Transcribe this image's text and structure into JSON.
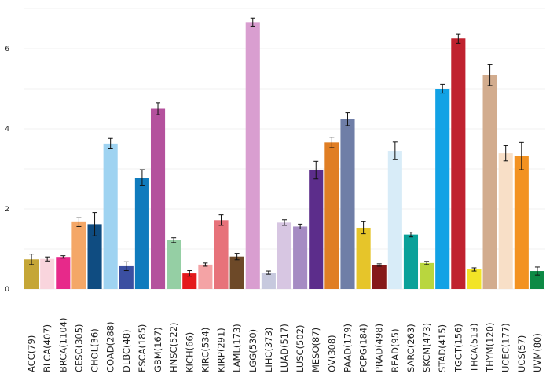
{
  "chart_data": {
    "type": "bar",
    "title": "",
    "xlabel": "",
    "ylabel": "",
    "ylim": [
      0,
      7
    ],
    "y_ticks": [
      0,
      2,
      4,
      6
    ],
    "grid": true,
    "categories": [
      "ACC(79)",
      "BLCA(407)",
      "BRCA(1104)",
      "CESC(305)",
      "CHOL(36)",
      "COAD(288)",
      "DLBC(48)",
      "ESCA(185)",
      "GBM(167)",
      "HNSC(522)",
      "KICH(66)",
      "KIRC(534)",
      "KIRP(291)",
      "LAML(173)",
      "LGG(530)",
      "LIHC(373)",
      "LUAD(517)",
      "LUSC(502)",
      "MESO(87)",
      "OV(308)",
      "PAAD(179)",
      "PCPG(184)",
      "PRAD(498)",
      "READ(95)",
      "SARC(263)",
      "SKCM(473)",
      "STAD(415)",
      "TGCT(156)",
      "THCA(513)",
      "THYM(120)",
      "UCEC(177)",
      "UCS(57)",
      "UVM(80)"
    ],
    "values": [
      0.74,
      0.75,
      0.8,
      1.67,
      1.62,
      3.63,
      0.57,
      2.78,
      4.5,
      1.22,
      0.39,
      0.61,
      1.72,
      0.81,
      6.66,
      0.41,
      1.66,
      1.56,
      2.97,
      3.66,
      4.24,
      1.53,
      0.6,
      3.45,
      1.36,
      0.65,
      5.0,
      6.25,
      0.49,
      5.34,
      3.39,
      3.32,
      0.45
    ],
    "error": [
      0.13,
      0.05,
      0.03,
      0.11,
      0.29,
      0.13,
      0.11,
      0.2,
      0.15,
      0.06,
      0.07,
      0.04,
      0.13,
      0.08,
      0.1,
      0.04,
      0.07,
      0.06,
      0.22,
      0.13,
      0.16,
      0.15,
      0.03,
      0.22,
      0.06,
      0.04,
      0.11,
      0.12,
      0.04,
      0.26,
      0.19,
      0.34,
      0.1
    ],
    "colors": [
      "#c5a636",
      "#f9d5dd",
      "#e7298a",
      "#f4a767",
      "#0f4c81",
      "#9fd3f1",
      "#3b4fa1",
      "#0f7bbd",
      "#b4519d",
      "#95cfa4",
      "#e41a1c",
      "#f4a3a5",
      "#e7727a",
      "#6d4928",
      "#d99ed0",
      "#c7c9de",
      "#d7c6e2",
      "#a58bc3",
      "#5c2d8b",
      "#e07e24",
      "#6f7ea7",
      "#e6c52a",
      "#861919",
      "#d8ecf8",
      "#0aa199",
      "#b9d63e",
      "#12a2e5",
      "#c0222f",
      "#f2e427",
      "#d2ac8e",
      "#f8dfc7",
      "#f39221",
      "#0d8a45"
    ]
  }
}
